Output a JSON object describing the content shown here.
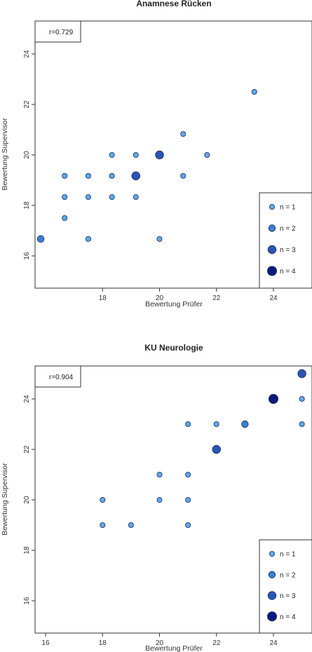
{
  "chart_data": [
    {
      "type": "scatter",
      "title": "Anamnese Rücken",
      "xlabel": "Bewertung Prüfer",
      "ylabel": "Bewertung Supervisor",
      "xlim": [
        15.5,
        25.2
      ],
      "ylim": [
        15.5,
        25.2
      ],
      "xticks": [
        18,
        20,
        22,
        24
      ],
      "yticks": [
        16,
        18,
        20,
        22,
        24
      ],
      "annotation": "r=0.729",
      "legend": {
        "placement": "bottom-right",
        "entries": [
          {
            "label": "n = 1",
            "n": 1
          },
          {
            "label": "n = 2",
            "n": 2
          },
          {
            "label": "n = 3",
            "n": 3
          },
          {
            "label": "n = 4",
            "n": 4
          }
        ]
      },
      "points": [
        {
          "x": 15.83,
          "y": 16.67,
          "n": 2
        },
        {
          "x": 16.67,
          "y": 19.17,
          "n": 1
        },
        {
          "x": 16.67,
          "y": 18.33,
          "n": 1
        },
        {
          "x": 16.67,
          "y": 17.5,
          "n": 1
        },
        {
          "x": 17.5,
          "y": 19.17,
          "n": 1
        },
        {
          "x": 17.5,
          "y": 18.33,
          "n": 1
        },
        {
          "x": 17.5,
          "y": 16.67,
          "n": 1
        },
        {
          "x": 18.33,
          "y": 20.0,
          "n": 1
        },
        {
          "x": 18.33,
          "y": 19.17,
          "n": 1
        },
        {
          "x": 18.33,
          "y": 18.33,
          "n": 1
        },
        {
          "x": 19.17,
          "y": 20.0,
          "n": 1
        },
        {
          "x": 19.17,
          "y": 19.17,
          "n": 3
        },
        {
          "x": 19.17,
          "y": 18.33,
          "n": 1
        },
        {
          "x": 20.0,
          "y": 20.0,
          "n": 3
        },
        {
          "x": 20.0,
          "y": 16.67,
          "n": 1
        },
        {
          "x": 20.83,
          "y": 20.83,
          "n": 1
        },
        {
          "x": 20.83,
          "y": 19.17,
          "n": 1
        },
        {
          "x": 21.67,
          "y": 20.0,
          "n": 1
        },
        {
          "x": 23.33,
          "y": 22.5,
          "n": 1
        }
      ]
    },
    {
      "type": "scatter",
      "title": "KU Neurologie",
      "xlabel": "Bewertung Prüfer",
      "ylabel": "Bewertung Supervisor",
      "xlim": [
        15.5,
        25.2
      ],
      "ylim": [
        15.5,
        25.2
      ],
      "xticks": [
        16,
        18,
        20,
        22,
        24
      ],
      "yticks": [
        16,
        18,
        20,
        22,
        24
      ],
      "annotation": "r=0.904",
      "legend": {
        "placement": "bottom-right",
        "entries": [
          {
            "label": "n = 1",
            "n": 1
          },
          {
            "label": "n = 2",
            "n": 2
          },
          {
            "label": "n = 3",
            "n": 3
          },
          {
            "label": "n = 4",
            "n": 4
          }
        ]
      },
      "points": [
        {
          "x": 18,
          "y": 20,
          "n": 1
        },
        {
          "x": 18,
          "y": 19,
          "n": 1
        },
        {
          "x": 19,
          "y": 19,
          "n": 1
        },
        {
          "x": 20,
          "y": 21,
          "n": 1
        },
        {
          "x": 20,
          "y": 20,
          "n": 1
        },
        {
          "x": 21,
          "y": 23,
          "n": 1
        },
        {
          "x": 21,
          "y": 21,
          "n": 1
        },
        {
          "x": 21,
          "y": 20,
          "n": 1
        },
        {
          "x": 21,
          "y": 19,
          "n": 1
        },
        {
          "x": 22,
          "y": 23,
          "n": 1
        },
        {
          "x": 22,
          "y": 22,
          "n": 3
        },
        {
          "x": 23,
          "y": 23,
          "n": 2
        },
        {
          "x": 24,
          "y": 24,
          "n": 4
        },
        {
          "x": 25,
          "y": 25,
          "n": 3
        },
        {
          "x": 25,
          "y": 24,
          "n": 1
        },
        {
          "x": 25,
          "y": 23,
          "n": 1
        }
      ]
    }
  ],
  "colors": {
    "n1": "#5aaaf0",
    "n2": "#3a7fd8",
    "n3": "#2a55b8",
    "n4": "#0a1a80",
    "stroke": "#1a2a50"
  }
}
